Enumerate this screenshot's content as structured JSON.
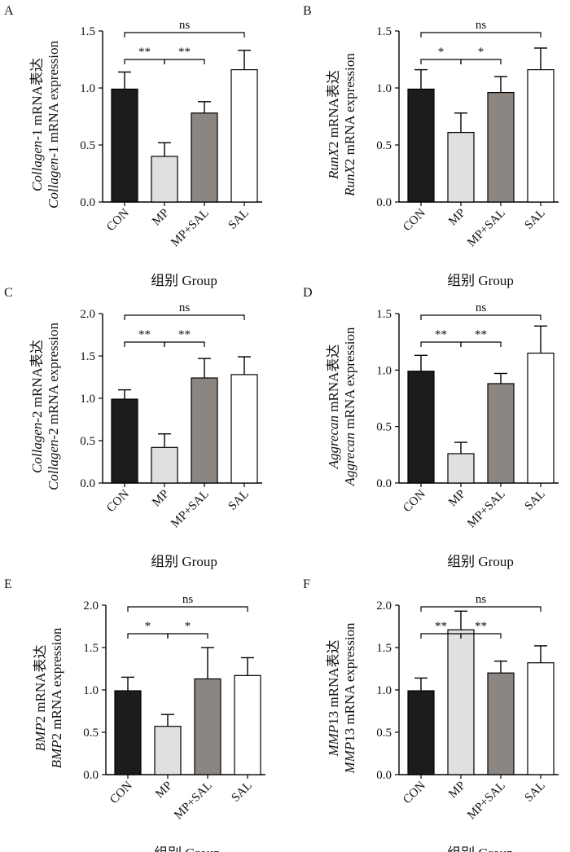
{
  "figure": {
    "xlabel": "组别 Group",
    "categories": [
      "CON",
      "MP",
      "MP+SAL",
      "SAL"
    ],
    "bar_colors": [
      "#1c1c1a",
      "#e2e0de",
      "#8c8682",
      "#ffffff"
    ],
    "ylabel_suffix_cn": " mRNA表达",
    "ylabel_suffix_en": " mRNA expression"
  },
  "chart_data": [
    {
      "panel": "A",
      "type": "bar",
      "gene": "Collagen",
      "gene_tail": "-1",
      "categories": [
        "CON",
        "MP",
        "MP+SAL",
        "SAL"
      ],
      "values": [
        0.99,
        0.4,
        0.78,
        1.16
      ],
      "errors": [
        0.15,
        0.12,
        0.1,
        0.17
      ],
      "ylim": [
        0,
        1.5
      ],
      "yticks": [
        "0.0",
        "0.5",
        "1.0",
        "1.5"
      ],
      "xlabel": "组别 Group",
      "significance": [
        {
          "from": 0,
          "to": 1,
          "label": "**",
          "row": 1
        },
        {
          "from": 1,
          "to": 2,
          "label": "**",
          "row": 1
        },
        {
          "from": 0,
          "to": 3,
          "label": "ns",
          "row": 2
        }
      ]
    },
    {
      "panel": "B",
      "type": "bar",
      "gene": "RunX",
      "gene_tail": "2",
      "categories": [
        "CON",
        "MP",
        "MP+SAL",
        "SAL"
      ],
      "values": [
        0.99,
        0.61,
        0.96,
        1.16
      ],
      "errors": [
        0.17,
        0.17,
        0.14,
        0.19
      ],
      "ylim": [
        0,
        1.5
      ],
      "yticks": [
        "0.0",
        "0.5",
        "1.0",
        "1.5"
      ],
      "xlabel": "组别 Group",
      "significance": [
        {
          "from": 0,
          "to": 1,
          "label": "*",
          "row": 1
        },
        {
          "from": 1,
          "to": 2,
          "label": "*",
          "row": 1
        },
        {
          "from": 0,
          "to": 3,
          "label": "ns",
          "row": 2
        }
      ]
    },
    {
      "panel": "C",
      "type": "bar",
      "gene": "Collagen",
      "gene_tail": "-2",
      "categories": [
        "CON",
        "MP",
        "MP+SAL",
        "SAL"
      ],
      "values": [
        0.99,
        0.42,
        1.24,
        1.28
      ],
      "errors": [
        0.11,
        0.16,
        0.23,
        0.21
      ],
      "ylim": [
        0,
        2.0
      ],
      "yticks": [
        "0.0",
        "0.5",
        "1.0",
        "1.5",
        "2.0"
      ],
      "xlabel": "组别 Group",
      "significance": [
        {
          "from": 0,
          "to": 1,
          "label": "**",
          "row": 1
        },
        {
          "from": 1,
          "to": 2,
          "label": "**",
          "row": 1
        },
        {
          "from": 0,
          "to": 3,
          "label": "ns",
          "row": 2
        }
      ]
    },
    {
      "panel": "D",
      "type": "bar",
      "gene": "Aggrecan",
      "gene_tail": "",
      "categories": [
        "CON",
        "MP",
        "MP+SAL",
        "SAL"
      ],
      "values": [
        0.99,
        0.26,
        0.88,
        1.15
      ],
      "errors": [
        0.14,
        0.1,
        0.09,
        0.24
      ],
      "ylim": [
        0,
        1.5
      ],
      "yticks": [
        "0.0",
        "0.5",
        "1.0",
        "1.5"
      ],
      "xlabel": "组别 Group",
      "significance": [
        {
          "from": 0,
          "to": 1,
          "label": "**",
          "row": 1
        },
        {
          "from": 1,
          "to": 2,
          "label": "**",
          "row": 1
        },
        {
          "from": 0,
          "to": 3,
          "label": "ns",
          "row": 2
        }
      ]
    },
    {
      "panel": "E",
      "type": "bar",
      "gene": "BMP",
      "gene_tail": "2",
      "categories": [
        "CON",
        "MP",
        "MP+SAL",
        "SAL"
      ],
      "values": [
        0.99,
        0.57,
        1.13,
        1.17
      ],
      "errors": [
        0.16,
        0.14,
        0.37,
        0.21
      ],
      "ylim": [
        0,
        2.0
      ],
      "yticks": [
        "0.0",
        "0.5",
        "1.0",
        "1.5",
        "2.0"
      ],
      "xlabel": "组别 Group",
      "significance": [
        {
          "from": 0,
          "to": 1,
          "label": "*",
          "row": 1
        },
        {
          "from": 1,
          "to": 2,
          "label": "*",
          "row": 1
        },
        {
          "from": 0,
          "to": 3,
          "label": "ns",
          "row": 2
        }
      ]
    },
    {
      "panel": "F",
      "type": "bar",
      "gene": "MMP",
      "gene_tail": "13",
      "categories": [
        "CON",
        "MP",
        "MP+SAL",
        "SAL"
      ],
      "values": [
        0.99,
        1.71,
        1.2,
        1.32
      ],
      "errors": [
        0.15,
        0.22,
        0.14,
        0.2
      ],
      "ylim": [
        0,
        2.0
      ],
      "yticks": [
        "0.0",
        "0.5",
        "1.0",
        "1.5",
        "2.0"
      ],
      "xlabel": "组别 Group",
      "significance": [
        {
          "from": 1,
          "to": 0,
          "label": "**",
          "row": 1
        },
        {
          "from": 1,
          "to": 2,
          "label": "**",
          "row": 1
        },
        {
          "from": 0,
          "to": 3,
          "label": "ns",
          "row": 2
        }
      ]
    }
  ]
}
